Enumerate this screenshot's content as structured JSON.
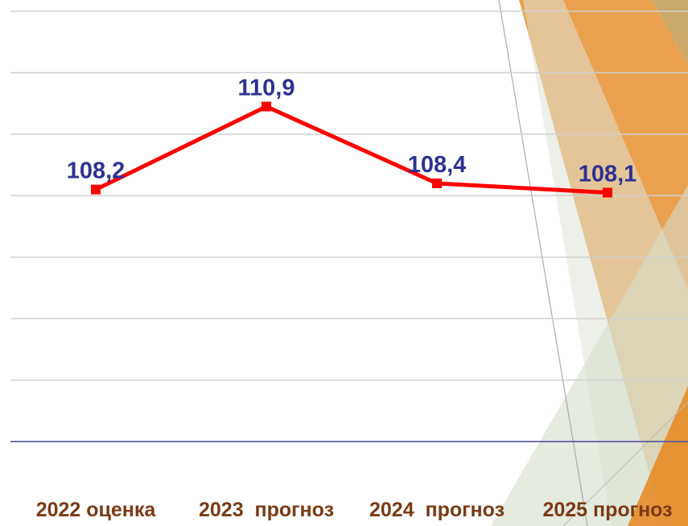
{
  "chart_data": {
    "type": "line",
    "categories": [
      "2022 оценка",
      "2023  прогноз",
      "2024  прогноз",
      "2025 прогноз"
    ],
    "series": [
      {
        "color": "#ff0000",
        "values": [
          108.2,
          110.9,
          108.4,
          108.1
        ],
        "value_labels": [
          "108,2",
          "110,9",
          "108,4",
          "108,1"
        ]
      }
    ],
    "ylim": [
      100,
      114
    ],
    "yticks": [
      100,
      102,
      104,
      106,
      108,
      110,
      112,
      114
    ],
    "grid": true
  }
}
